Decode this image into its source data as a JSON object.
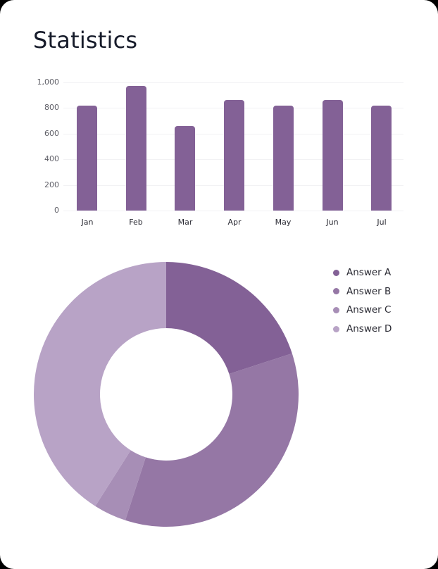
{
  "header": {
    "title": "Statistics"
  },
  "colors": {
    "bar": "#836196",
    "answer_a": "#836196",
    "answer_b": "#9577a5",
    "answer_c": "#a78eb6",
    "answer_d": "#b8a3c6"
  },
  "chart_data": [
    {
      "type": "bar",
      "title": "",
      "categories": [
        "Jan",
        "Feb",
        "Mar",
        "Apr",
        "May",
        "Jun",
        "Jul"
      ],
      "values": [
        820,
        975,
        660,
        860,
        820,
        860,
        820
      ],
      "xlabel": "",
      "ylabel": "",
      "ylim": [
        0,
        1000
      ],
      "yticks": [
        "0",
        "200",
        "400",
        "600",
        "800",
        "1,000"
      ],
      "grid": true,
      "legend": null
    },
    {
      "type": "pie",
      "variant": "donut",
      "labels": [
        "Answer A",
        "Answer B",
        "Answer C",
        "Answer D"
      ],
      "values": [
        20,
        35,
        4,
        41
      ],
      "colors": [
        "#836196",
        "#9577a5",
        "#a78eb6",
        "#b8a3c6"
      ],
      "legend_position": "right"
    }
  ],
  "bar_chart": {
    "yticks": [
      "0",
      "200",
      "400",
      "600",
      "800",
      "1,000"
    ],
    "categories": [
      "Jan",
      "Feb",
      "Mar",
      "Apr",
      "May",
      "Jun",
      "Jul"
    ]
  },
  "legend": {
    "items": [
      {
        "label": "Answer A",
        "color": "#836196"
      },
      {
        "label": "Answer B",
        "color": "#9577a5"
      },
      {
        "label": "Answer C",
        "color": "#a78eb6"
      },
      {
        "label": "Answer D",
        "color": "#b8a3c6"
      }
    ]
  }
}
